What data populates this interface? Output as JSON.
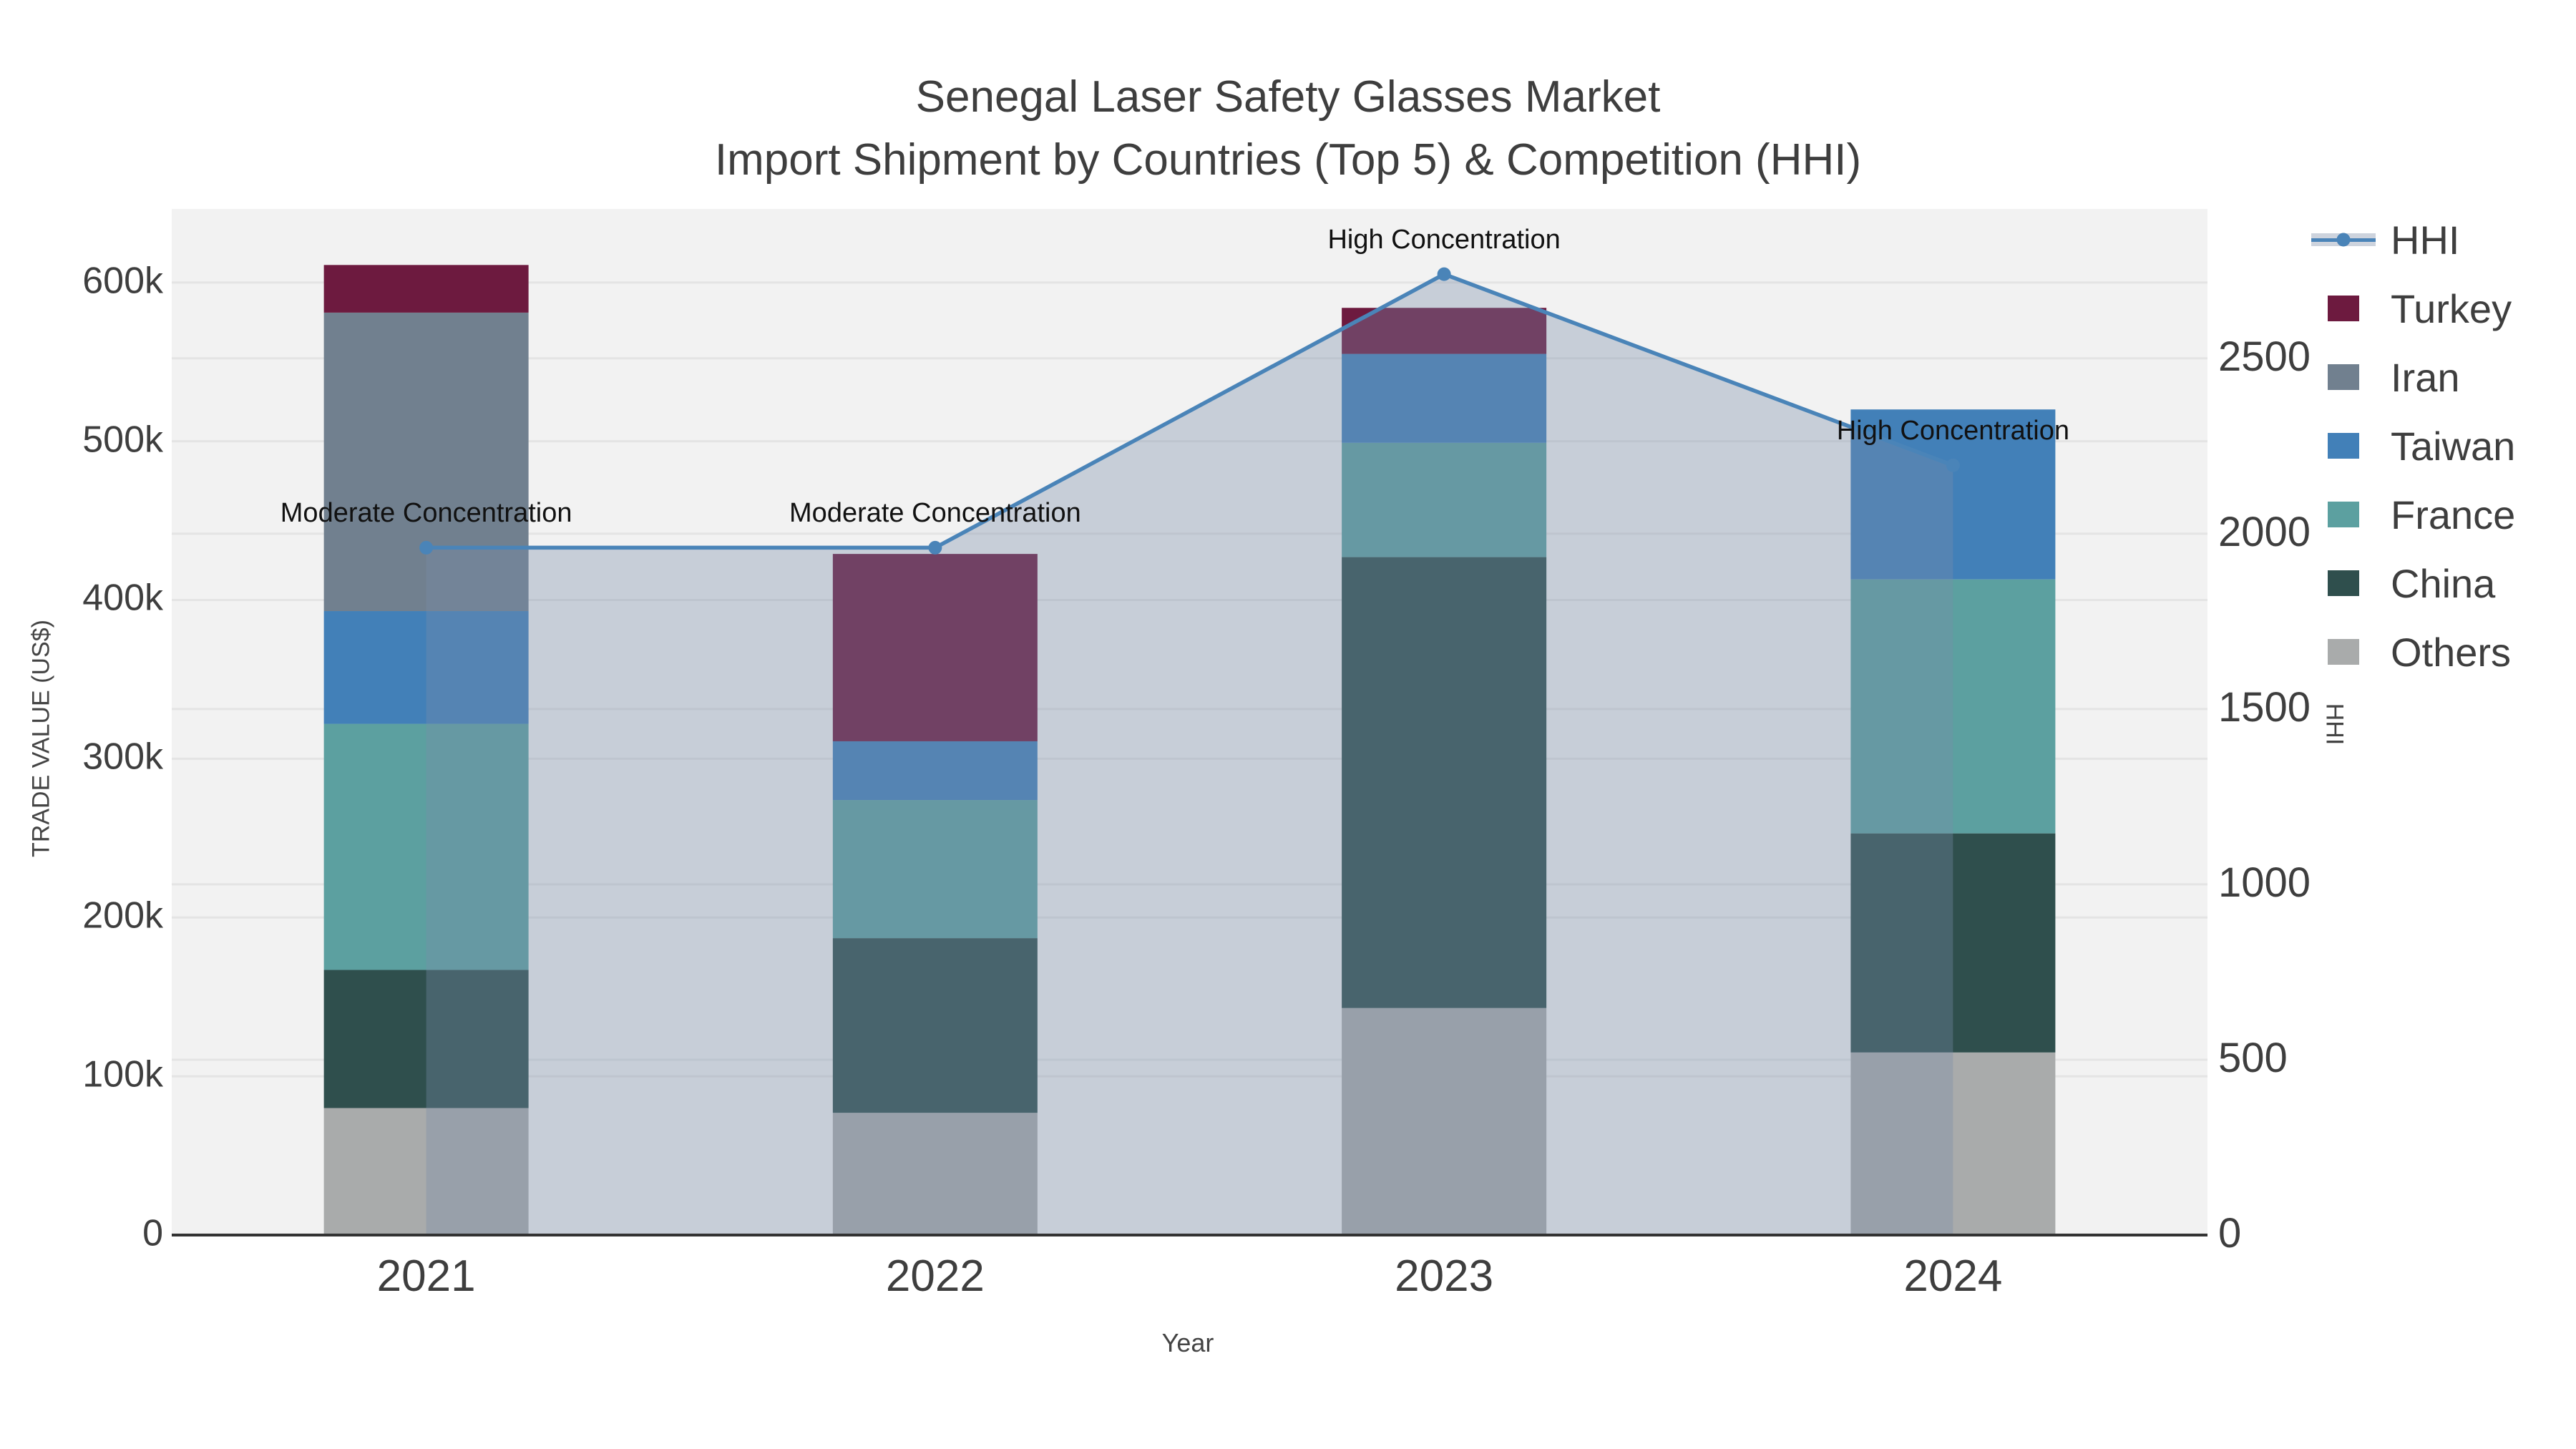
{
  "title": {
    "line1": "Senegal Laser Safety Glasses Market",
    "line2": "Import Shipment by Countries (Top 5) & Competition (HHI)"
  },
  "axes": {
    "left": {
      "title": "TRADE VALUE (US$)",
      "tick_values": [
        0,
        100000,
        200000,
        300000,
        400000,
        500000,
        600000
      ],
      "tick_labels": [
        "0",
        "100k",
        "200k",
        "300k",
        "400k",
        "500k",
        "600k"
      ]
    },
    "right": {
      "title": "HHI",
      "tick_values": [
        0,
        500,
        1000,
        1500,
        2000,
        2500
      ],
      "tick_labels": [
        "0",
        "500",
        "1000",
        "1500",
        "2000",
        "2500"
      ]
    },
    "x": {
      "title": "Year"
    }
  },
  "chart_data": {
    "type": "bar+line",
    "categories": [
      "2021",
      "2022",
      "2023",
      "2024"
    ],
    "stack_order_bottom_to_top": [
      "Others",
      "China",
      "France",
      "Taiwan",
      "Iran",
      "Turkey"
    ],
    "series": [
      {
        "name": "Others",
        "color": "#a9abab",
        "values": [
          80000,
          77000,
          143000,
          115000
        ]
      },
      {
        "name": "China",
        "color": "#2f4f4d",
        "values": [
          87000,
          110000,
          284000,
          138000
        ]
      },
      {
        "name": "France",
        "color": "#5ca0a0",
        "values": [
          155000,
          87000,
          72000,
          160000
        ]
      },
      {
        "name": "Taiwan",
        "color": "#4280b8",
        "values": [
          71000,
          37000,
          56000,
          107000
        ]
      },
      {
        "name": "Iran",
        "color": "#71808f",
        "values": [
          188000,
          0,
          0,
          0
        ]
      },
      {
        "name": "Turkey",
        "color": "#6d1a3f",
        "values": [
          30000,
          118000,
          29000,
          0
        ]
      }
    ],
    "bar_totals": [
      611000,
      429000,
      584000,
      520000
    ],
    "hhi": {
      "name": "HHI",
      "values": [
        1960,
        1960,
        2740,
        2195
      ],
      "line_color": "#4a84b8",
      "fill_color": "rgba(120,140,170,0.35)"
    },
    "annotations": [
      {
        "text": "Moderate Concentration",
        "category": "2021",
        "hhi": 1960
      },
      {
        "text": "Moderate Concentration",
        "category": "2022",
        "hhi": 1960
      },
      {
        "text": "High Concentration",
        "category": "2023",
        "hhi": 2740
      },
      {
        "text": "High Concentration",
        "category": "2024",
        "hhi": 2195
      }
    ],
    "ylim_left": [
      0,
      646300
    ],
    "ylim_right": [
      0,
      2926
    ],
    "grid": true,
    "legend_position": "right"
  },
  "legend": {
    "items": [
      {
        "label": "HHI",
        "type": "line",
        "color": "#4a84b8",
        "band_color": "#cdd3dd"
      },
      {
        "label": "Turkey",
        "type": "swatch",
        "color": "#6d1a3f"
      },
      {
        "label": "Iran",
        "type": "swatch",
        "color": "#71808f"
      },
      {
        "label": "Taiwan",
        "type": "swatch",
        "color": "#4280b8"
      },
      {
        "label": "France",
        "type": "swatch",
        "color": "#5ca0a0"
      },
      {
        "label": "China",
        "type": "swatch",
        "color": "#2f4f4d"
      },
      {
        "label": "Others",
        "type": "swatch",
        "color": "#a9abab"
      }
    ]
  },
  "colors": {
    "plot_background": "#f2f2f2",
    "paper_background": "#ffffff",
    "gridline": "#e4e4e4",
    "axis_line": "#333333",
    "text": "#3e3e3e",
    "annotation_text": "#111111"
  }
}
